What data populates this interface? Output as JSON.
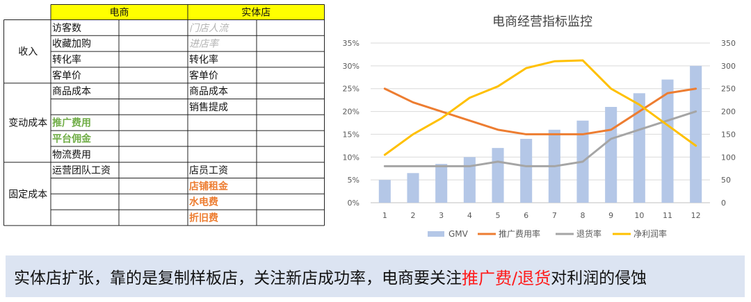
{
  "table": {
    "headers": [
      "电商",
      "实体店"
    ],
    "colors": {
      "header_fill": "#ffff00",
      "green": "#70ad47",
      "orange": "#ed7d31",
      "gray_italic": "#b3b3b3"
    },
    "sections": [
      {
        "label": "收入",
        "rows": [
          {
            "ec": "访客数",
            "store": "门店人流",
            "store_style": "gray-italic"
          },
          {
            "ec": "收藏加购",
            "store": "进店率",
            "store_style": "gray-italic"
          },
          {
            "ec": "转化率",
            "store": "转化率"
          },
          {
            "ec": "客单价",
            "store": "客单价"
          }
        ]
      },
      {
        "label": "变动成本",
        "rows": [
          {
            "ec": "商品成本",
            "store": "商品成本"
          },
          {
            "ec": "",
            "store": "销售提成"
          },
          {
            "ec": "推广费用",
            "ec_style": "green-bold",
            "store": ""
          },
          {
            "ec": "平台佣金",
            "ec_style": "green-bold",
            "store": ""
          },
          {
            "ec": "物流费用",
            "store": ""
          }
        ]
      },
      {
        "label": "固定成本",
        "rows": [
          {
            "ec": "运营团队工资",
            "store": "店员工资"
          },
          {
            "ec": "",
            "store": "店铺租金",
            "store_style": "orange-bold"
          },
          {
            "ec": "",
            "store": "水电费",
            "store_style": "orange-bold"
          },
          {
            "ec": "",
            "store": "折旧费",
            "store_style": "orange-bold"
          }
        ]
      }
    ]
  },
  "chart_data": {
    "type": "bar+line",
    "title": "电商经营指标监控",
    "categories": [
      "1",
      "2",
      "3",
      "4",
      "5",
      "6",
      "7",
      "8",
      "9",
      "10",
      "11",
      "12"
    ],
    "y_left": {
      "ticks": [
        "0%",
        "5%",
        "10%",
        "15%",
        "20%",
        "25%",
        "30%",
        "35%"
      ],
      "range": [
        0,
        35
      ]
    },
    "y_right": {
      "ticks": [
        "0",
        "50",
        "100",
        "150",
        "200",
        "250",
        "300",
        "350"
      ],
      "range": [
        0,
        350
      ]
    },
    "gridlines": true,
    "legend_position": "bottom",
    "series": [
      {
        "name": "GMV",
        "kind": "bar",
        "axis": "right",
        "color": "#b4c7e7",
        "values": [
          50,
          65,
          85,
          100,
          120,
          140,
          160,
          180,
          210,
          240,
          270,
          300
        ]
      },
      {
        "name": "推广费用率",
        "kind": "line",
        "axis": "left",
        "color": "#ed7d31",
        "values": [
          25,
          22,
          20,
          18,
          16,
          15,
          15,
          15,
          16,
          20,
          24,
          25
        ]
      },
      {
        "name": "退货率",
        "kind": "line",
        "axis": "left",
        "color": "#a5a5a5",
        "values": [
          8,
          8,
          8,
          8,
          9,
          8,
          8,
          9,
          14,
          16,
          18,
          20
        ]
      },
      {
        "name": "净利润率",
        "kind": "line",
        "axis": "left",
        "color": "#ffc000",
        "values": [
          10.5,
          15,
          18.5,
          23,
          25.5,
          29.5,
          31,
          31.2,
          25,
          21.5,
          17,
          12.5
        ]
      }
    ]
  },
  "note": {
    "text_before": "实体店扩张，靠的是复制样板店，关注新店成功率，电商要关注",
    "highlight": "推广费/退货",
    "text_after": "对利润的侵蚀"
  }
}
